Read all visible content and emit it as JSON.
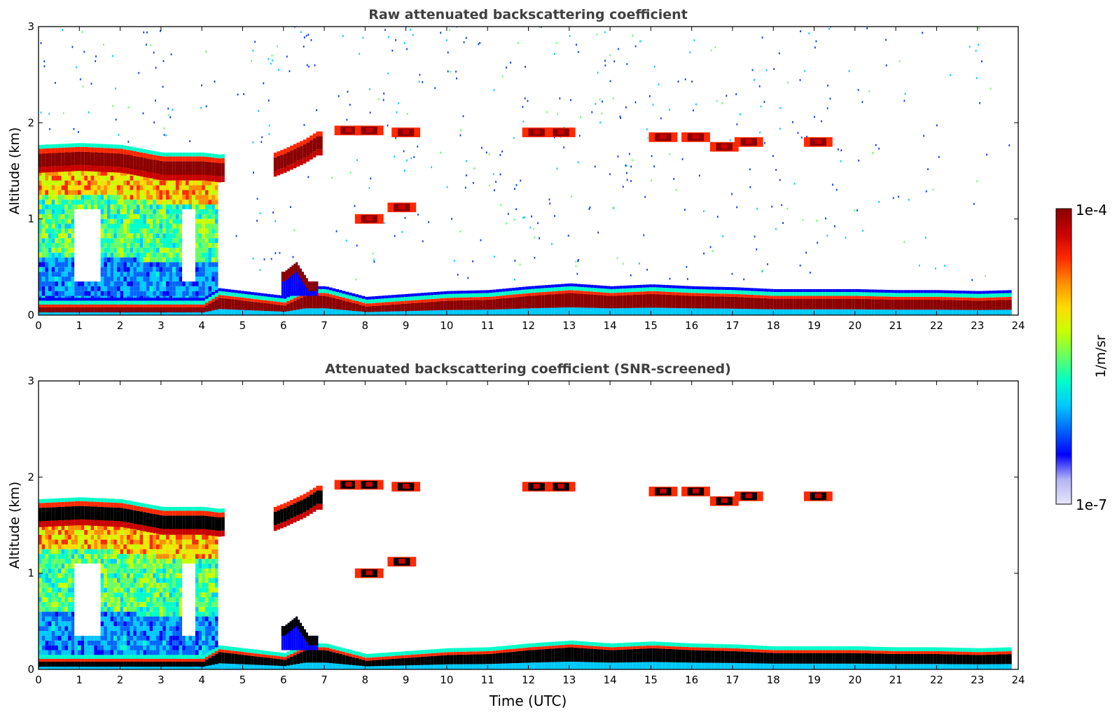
{
  "chart_data": [
    {
      "type": "heatmap",
      "title": "Raw attenuated backscattering coefficient",
      "xlabel": "",
      "ylabel": "Altitude (km)",
      "xlim": [
        0,
        24
      ],
      "ylim": [
        0,
        3
      ],
      "x_ticks": [
        "0",
        "1",
        "2",
        "3",
        "4",
        "5",
        "6",
        "7",
        "8",
        "9",
        "10",
        "11",
        "12",
        "13",
        "14",
        "15",
        "16",
        "17",
        "18",
        "19",
        "20",
        "21",
        "22",
        "23",
        "24"
      ],
      "y_ticks": [
        "0",
        "1",
        "2",
        "3"
      ],
      "screened": false,
      "features": {
        "cloud_layer": [
          [
            0,
            1.6
          ],
          [
            1,
            1.62
          ],
          [
            2,
            1.6
          ],
          [
            3,
            1.52
          ],
          [
            4,
            1.52
          ],
          [
            4.4,
            1.5
          ],
          [
            5.7,
            1.55
          ],
          [
            6,
            1.6
          ],
          [
            6.5,
            1.7
          ],
          [
            6.8,
            1.78
          ]
        ],
        "aerosol_layer_top": [
          [
            0,
            0.08
          ],
          [
            4,
            0.08
          ],
          [
            4.4,
            0.18
          ],
          [
            5,
            0.15
          ],
          [
            6,
            0.1
          ],
          [
            6.5,
            0.2
          ],
          [
            7,
            0.2
          ],
          [
            8,
            0.09
          ],
          [
            9,
            0.12
          ],
          [
            10,
            0.15
          ],
          [
            11,
            0.16
          ],
          [
            12,
            0.2
          ],
          [
            13,
            0.23
          ],
          [
            14,
            0.2
          ],
          [
            15,
            0.22
          ],
          [
            16,
            0.2
          ],
          [
            17,
            0.19
          ],
          [
            18,
            0.17
          ],
          [
            19,
            0.17
          ],
          [
            20,
            0.17
          ],
          [
            21,
            0.16
          ],
          [
            22,
            0.16
          ],
          [
            23,
            0.15
          ],
          [
            23.8,
            0.16
          ]
        ],
        "cirrus_patches": [
          [
            7.6,
            1.92
          ],
          [
            8.1,
            1.92
          ],
          [
            9,
            1.9
          ],
          [
            12.2,
            1.9
          ],
          [
            12.8,
            1.9
          ],
          [
            15.3,
            1.85
          ],
          [
            16.1,
            1.85
          ],
          [
            16.8,
            1.75
          ],
          [
            17.4,
            1.8
          ],
          [
            19.1,
            1.8
          ],
          [
            8.1,
            1.0
          ],
          [
            8.9,
            1.12
          ]
        ],
        "plume": [
          [
            6.0,
            0.45
          ],
          [
            6.3,
            0.55
          ],
          [
            6.6,
            0.35
          ]
        ]
      }
    },
    {
      "type": "heatmap",
      "title": "Attenuated backscattering coefficient (SNR-screened)",
      "xlabel": "Time (UTC)",
      "ylabel": "Altitude (km)",
      "xlim": [
        0,
        24
      ],
      "ylim": [
        0,
        3
      ],
      "x_ticks": [
        "0",
        "1",
        "2",
        "3",
        "4",
        "5",
        "6",
        "7",
        "8",
        "9",
        "10",
        "11",
        "12",
        "13",
        "14",
        "15",
        "16",
        "17",
        "18",
        "19",
        "20",
        "21",
        "22",
        "23",
        "24"
      ],
      "y_ticks": [
        "0",
        "1",
        "2",
        "3"
      ],
      "screened": true
    }
  ],
  "colorbar": {
    "label": "1/m/sr",
    "max_label": "1e-4",
    "min_label": "1e-7",
    "scale": "log",
    "range": [
      1e-07,
      0.0001
    ],
    "colors": [
      "#e6e6fa",
      "#b4b4f5",
      "#0000ff",
      "#0064ff",
      "#00c8ff",
      "#00ffc8",
      "#64ff64",
      "#c8ff00",
      "#ffdc00",
      "#ff8c00",
      "#ff2800",
      "#c80000",
      "#8b0000"
    ]
  }
}
